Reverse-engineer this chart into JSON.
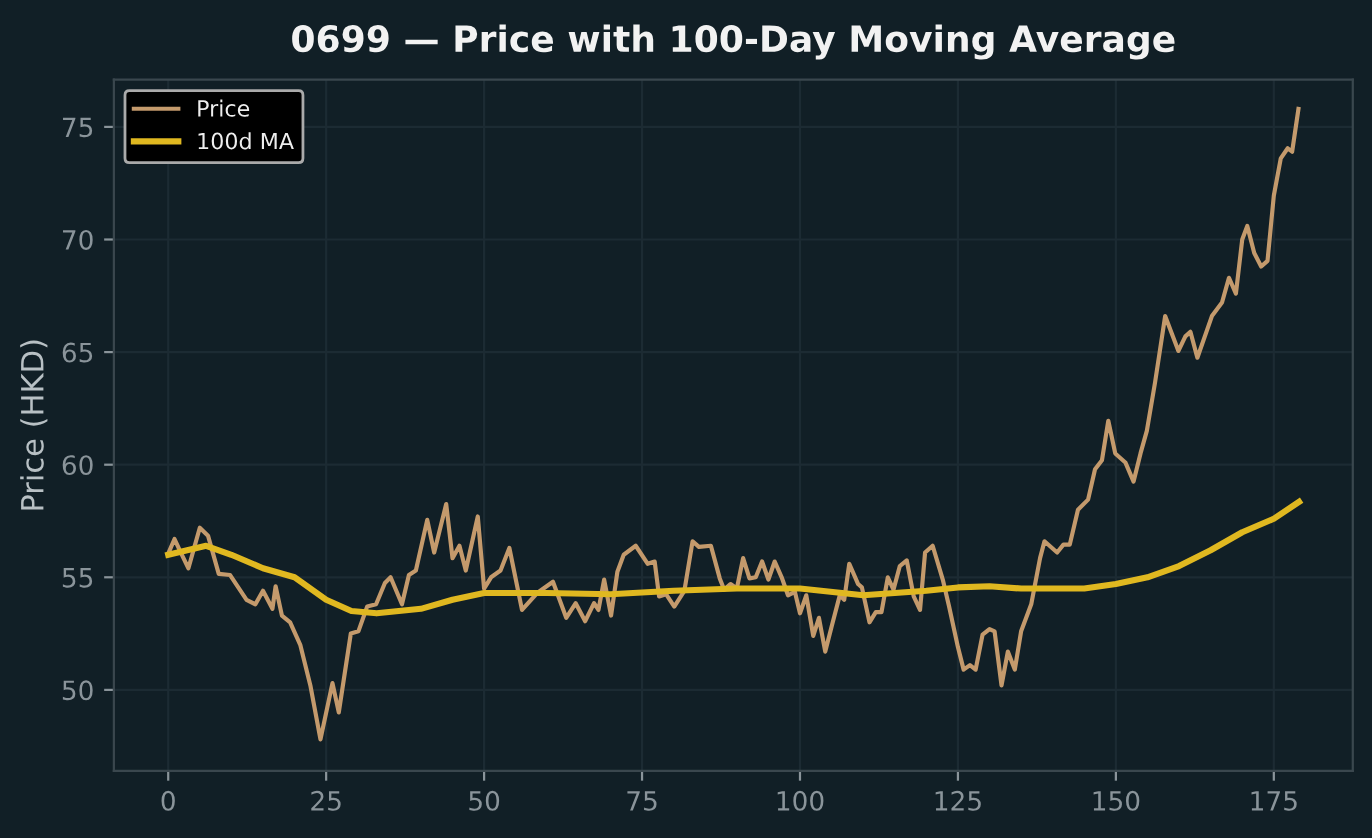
{
  "chart_data": {
    "type": "line",
    "title": "0699 — Price with 100-Day Moving Average",
    "ylabel": "Price (HKD)",
    "xlim": [
      -8.6,
      187.5
    ],
    "ylim": [
      46.4,
      77.1
    ],
    "xticks": [
      0,
      25,
      50,
      75,
      100,
      125,
      150,
      175
    ],
    "yticks": [
      50,
      55,
      60,
      65,
      70,
      75
    ],
    "grid": true,
    "legend": "top left",
    "marker": "none",
    "line_style": "solid",
    "series": [
      {
        "name": "Price",
        "color": "#c49a6c",
        "x": [
          0,
          1,
          2,
          3.2,
          5,
          6.3,
          8,
          9.8,
          12.4,
          13.8,
          15,
          16.5,
          17,
          18,
          19.3,
          20.9,
          22.5,
          24.1,
          26,
          27,
          28.9,
          30.1,
          31.5,
          32.9,
          34.3,
          35.2,
          37,
          38.1,
          39.2,
          41,
          42.1,
          44,
          45,
          46.1,
          47.1,
          49,
          50,
          51.1,
          52.6,
          54,
          56,
          58.4,
          60.9,
          63,
          64.5,
          66,
          67.4,
          68.1,
          69,
          70.1,
          71.1,
          72.1,
          74,
          75.9,
          77,
          77.7,
          78.8,
          80.1,
          81.7,
          83,
          84,
          85.9,
          87.3,
          88,
          89,
          90,
          91,
          92,
          93,
          94,
          95,
          96,
          97.1,
          98.1,
          99.2,
          100,
          101,
          102.1,
          103,
          104,
          105,
          106.3,
          107,
          107.8,
          109.2,
          109.8,
          111,
          112,
          112.9,
          113.9,
          114.8,
          115.8,
          116.9,
          118,
          119,
          119.8,
          121,
          122.6,
          123.6,
          125,
          125.9,
          126.9,
          127.8,
          128.9,
          130,
          130.8,
          131.9,
          132.9,
          134,
          135,
          136.6,
          138,
          138.7,
          140.7,
          141.7,
          142.7,
          144,
          145.6,
          146.7,
          147.8,
          148.8,
          149.9,
          151.5,
          152.8,
          153.9,
          154.9,
          156.2,
          157.8,
          159.9,
          161,
          161.8,
          162.9,
          165.2,
          166.8,
          167.9,
          169,
          170,
          170.8,
          171.9,
          173,
          174,
          175,
          176.1,
          177.2,
          177.9,
          178.9
        ],
        "values": [
          56.05,
          56.7,
          56.1,
          55.4,
          57.2,
          56.85,
          55.15,
          55.1,
          54.0,
          53.8,
          54.4,
          53.6,
          54.6,
          53.3,
          53.0,
          52.0,
          50.2,
          47.8,
          50.3,
          49.0,
          52.5,
          52.6,
          53.7,
          53.8,
          54.75,
          55.0,
          53.8,
          55.1,
          55.3,
          57.55,
          56.1,
          58.25,
          55.85,
          56.4,
          55.3,
          57.7,
          54.5,
          55.0,
          55.3,
          56.3,
          53.55,
          54.3,
          54.8,
          53.2,
          53.85,
          53.05,
          53.85,
          53.55,
          54.9,
          53.3,
          55.25,
          56.0,
          56.4,
          55.6,
          55.7,
          54.15,
          54.25,
          53.7,
          54.4,
          56.6,
          56.35,
          56.4,
          54.95,
          54.45,
          54.7,
          54.5,
          55.85,
          54.95,
          55.0,
          55.7,
          54.9,
          55.7,
          55.0,
          54.2,
          54.35,
          53.4,
          54.2,
          52.4,
          53.2,
          51.7,
          52.8,
          54.2,
          54.0,
          55.6,
          54.7,
          54.55,
          53.0,
          53.45,
          53.45,
          55.0,
          54.45,
          55.5,
          55.75,
          54.15,
          53.55,
          56.1,
          56.4,
          54.9,
          53.7,
          51.9,
          50.9,
          51.1,
          50.9,
          52.45,
          52.7,
          52.6,
          50.2,
          51.7,
          50.9,
          52.6,
          53.8,
          55.85,
          56.6,
          56.1,
          56.45,
          56.45,
          58.0,
          58.45,
          59.8,
          60.2,
          61.95,
          60.5,
          60.1,
          59.25,
          60.5,
          61.5,
          63.65,
          66.6,
          65.05,
          65.7,
          65.9,
          64.75,
          66.6,
          67.2,
          68.3,
          67.6,
          70.0,
          70.6,
          69.4,
          68.8,
          69.05,
          71.95,
          73.6,
          74.05,
          73.9,
          75.8
        ]
      },
      {
        "name": "100d MA",
        "color": "#e0b820",
        "x": [
          0,
          3,
          6,
          10,
          15,
          20,
          25,
          29,
          33,
          40,
          45,
          50,
          60,
          70,
          80,
          90,
          100,
          110,
          120,
          125,
          130,
          135,
          145,
          150,
          155,
          160,
          165,
          170,
          175,
          179
        ],
        "values": [
          56.0,
          56.2,
          56.4,
          56.0,
          55.4,
          55.0,
          54.0,
          53.5,
          53.4,
          53.6,
          54.0,
          54.3,
          54.3,
          54.25,
          54.4,
          54.5,
          54.5,
          54.2,
          54.4,
          54.55,
          54.6,
          54.5,
          54.5,
          54.7,
          55.0,
          55.5,
          56.2,
          57.0,
          57.6,
          58.35
        ]
      }
    ]
  }
}
